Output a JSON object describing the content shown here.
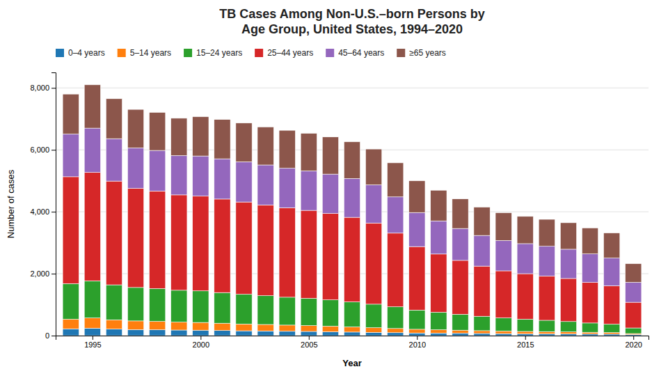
{
  "chart_data": {
    "type": "bar",
    "stacked": true,
    "title": "TB Cases Among Non-U.S.–born Persons by\nAge Group, United States, 1994–2020",
    "x_label": "Year",
    "y_label": "Number of cases",
    "x": [
      1994,
      1995,
      1996,
      1997,
      1998,
      1999,
      2000,
      2001,
      2002,
      2003,
      2004,
      2005,
      2006,
      2007,
      2008,
      2009,
      2010,
      2011,
      2012,
      2013,
      2014,
      2015,
      2016,
      2017,
      2018,
      2019,
      2020
    ],
    "series": [
      {
        "name": "0–4 years",
        "values": [
          220,
          240,
          210,
          195,
          190,
          180,
          175,
          165,
          155,
          150,
          140,
          135,
          125,
          115,
          105,
          95,
          85,
          80,
          75,
          70,
          65,
          60,
          60,
          55,
          50,
          48,
          32
        ]
      },
      {
        "name": "5–14 years",
        "values": [
          310,
          330,
          300,
          280,
          270,
          255,
          250,
          235,
          220,
          210,
          200,
          190,
          180,
          165,
          150,
          135,
          120,
          110,
          100,
          90,
          82,
          75,
          70,
          65,
          58,
          52,
          35
        ]
      },
      {
        "name": "15–24 years",
        "values": [
          1150,
          1200,
          1130,
          1080,
          1060,
          1030,
          1020,
          990,
          960,
          930,
          900,
          880,
          850,
          810,
          760,
          700,
          620,
          565,
          515,
          465,
          425,
          395,
          365,
          335,
          300,
          270,
          180
        ]
      },
      {
        "name": "25–44 years",
        "values": [
          3450,
          3500,
          3350,
          3200,
          3150,
          3080,
          3060,
          3020,
          2980,
          2930,
          2890,
          2840,
          2790,
          2730,
          2620,
          2380,
          2050,
          1880,
          1740,
          1620,
          1520,
          1470,
          1430,
          1390,
          1310,
          1240,
          830
        ]
      },
      {
        "name": "45–64 years",
        "values": [
          1380,
          1430,
          1370,
          1310,
          1310,
          1270,
          1295,
          1300,
          1300,
          1290,
          1275,
          1275,
          1270,
          1255,
          1235,
          1170,
          1100,
          1070,
          1030,
          990,
          980,
          970,
          960,
          945,
          920,
          895,
          645
        ]
      },
      {
        "name": "≥65 years",
        "values": [
          1290,
          1400,
          1290,
          1240,
          1230,
          1205,
          1270,
          1270,
          1250,
          1230,
          1225,
          1215,
          1200,
          1185,
          1155,
          1100,
          1025,
          990,
          955,
          915,
          895,
          880,
          870,
          855,
          840,
          810,
          600
        ]
      }
    ],
    "xlim": [
      1993.3,
      2020.7
    ],
    "xticks": [
      1995,
      2000,
      2005,
      2010,
      2015,
      2020
    ],
    "ylim": [
      0,
      8500
    ],
    "yticks": [
      0,
      {
        "value": 2000,
        "label": "2,000"
      },
      {
        "value": 4000,
        "label": "4,000"
      },
      {
        "value": 6000,
        "label": "6,000"
      },
      {
        "value": 8000,
        "label": "8,000"
      }
    ],
    "grid": true,
    "legend": "top-left"
  }
}
